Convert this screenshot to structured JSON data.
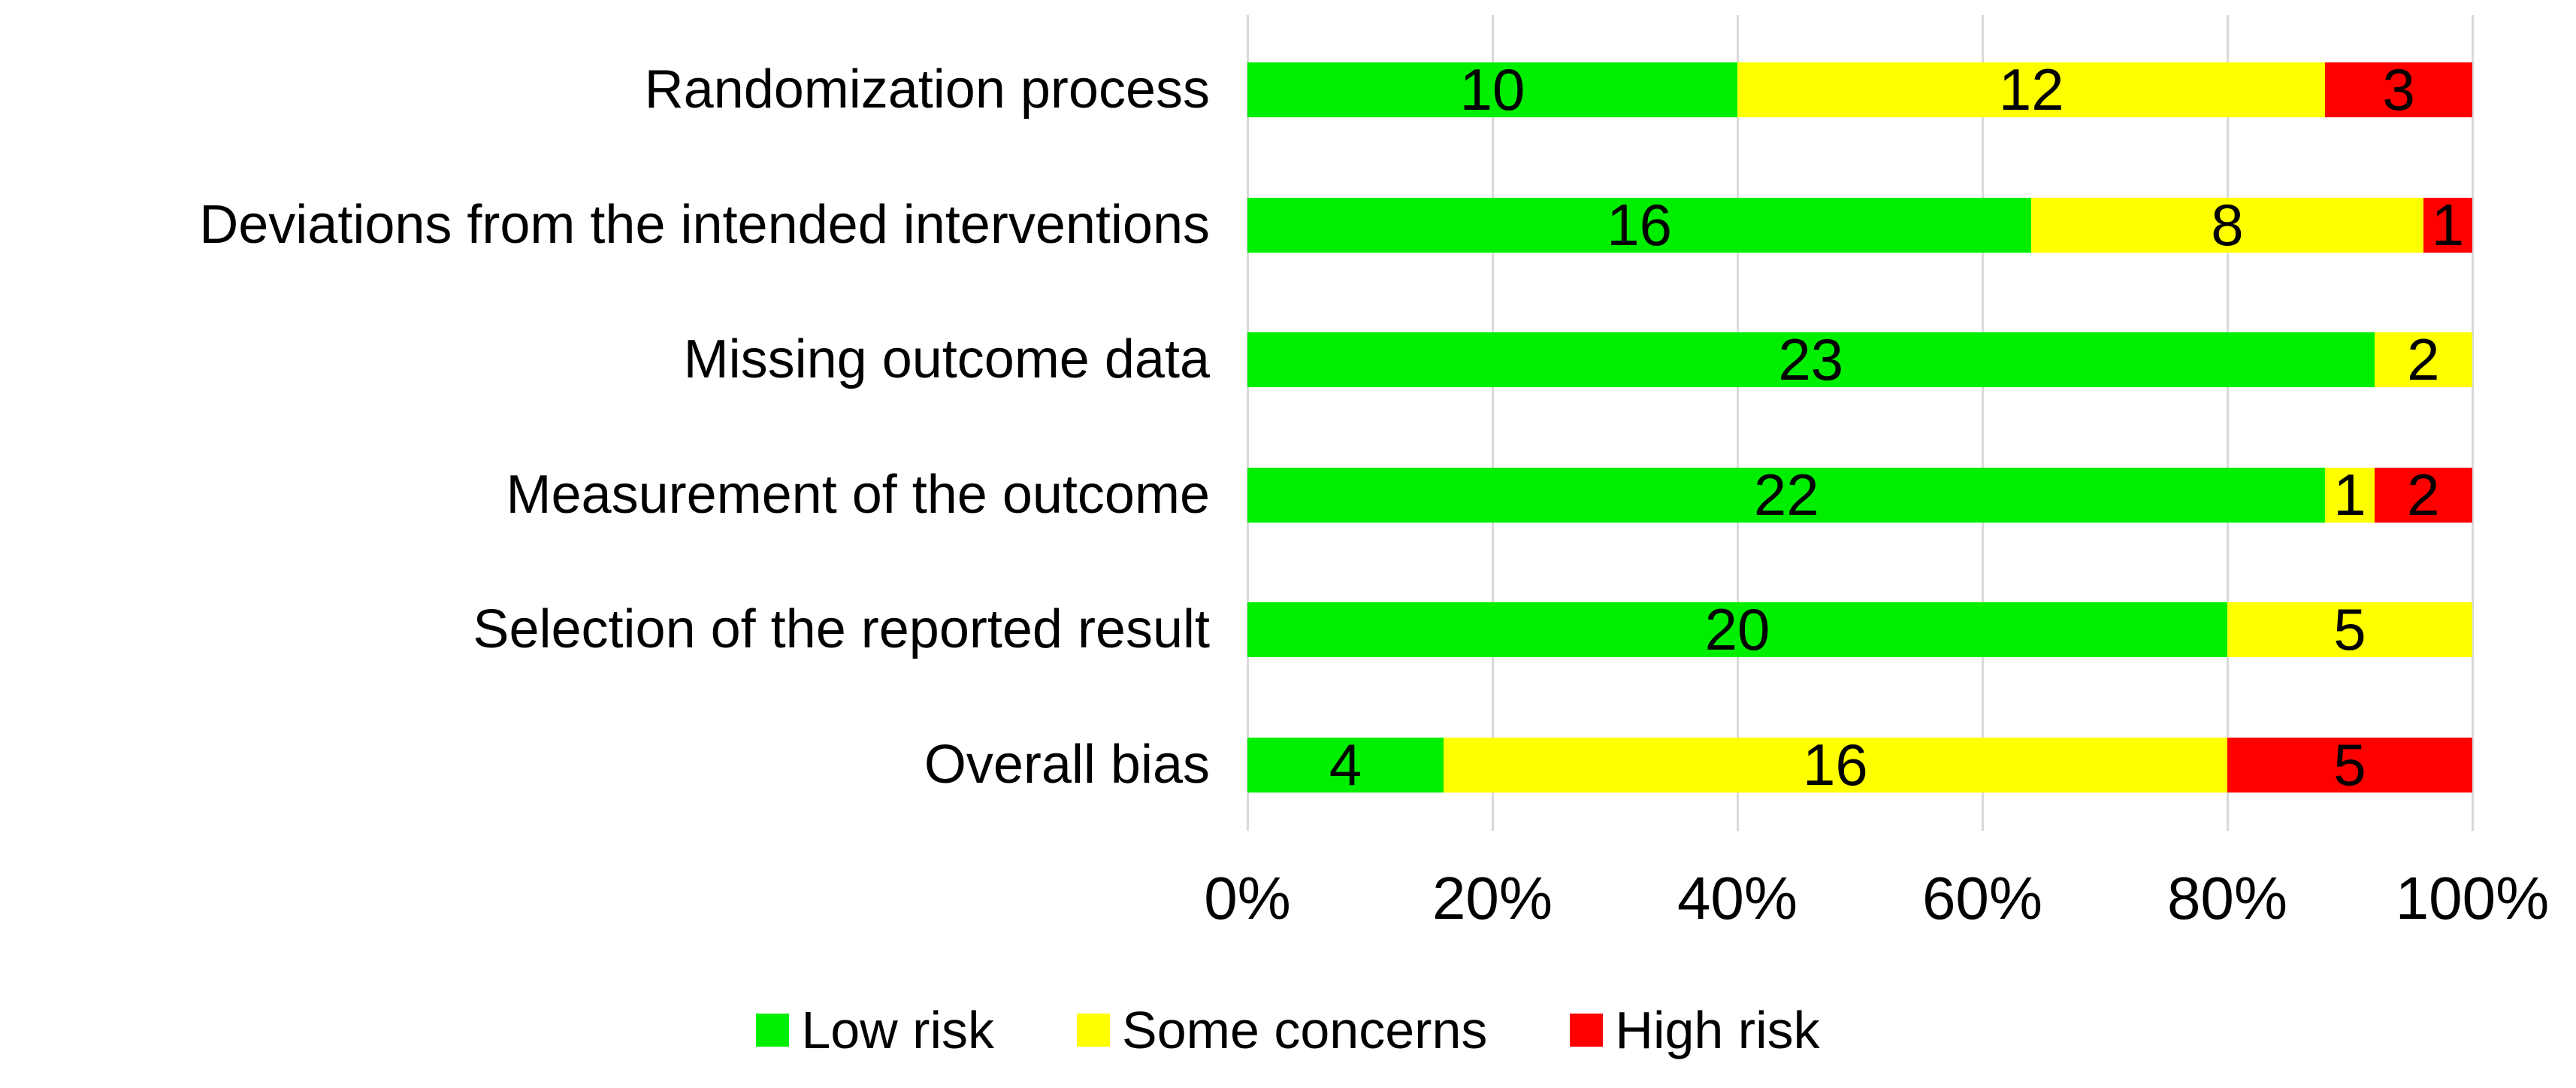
{
  "chart_data": {
    "type": "bar",
    "orientation": "horizontal",
    "stacked": true,
    "title": "",
    "categories": [
      "Randomization process",
      "Deviations from the intended interventions",
      "Missing outcome data",
      "Measurement of the outcome",
      "Selection of the reported result",
      "Overall bias"
    ],
    "series": [
      {
        "name": "Low risk",
        "color": "#00EE00",
        "values": [
          10,
          16,
          23,
          22,
          20,
          4
        ]
      },
      {
        "name": "Some concerns",
        "color": "#FFFF00",
        "values": [
          12,
          8,
          2,
          1,
          5,
          16
        ]
      },
      {
        "name": "High risk",
        "color": "#FF0000",
        "values": [
          3,
          1,
          0,
          2,
          0,
          5
        ]
      }
    ],
    "row_total": 25,
    "x_axis": {
      "tick_labels": [
        "0%",
        "20%",
        "40%",
        "60%",
        "80%",
        "100%"
      ],
      "min": 0,
      "max": 100
    },
    "grid": true,
    "gridline_color": "#D9D9D9",
    "data_label_color": "#000000",
    "background_color": "#FFFFFF",
    "legend_position": "bottom"
  }
}
